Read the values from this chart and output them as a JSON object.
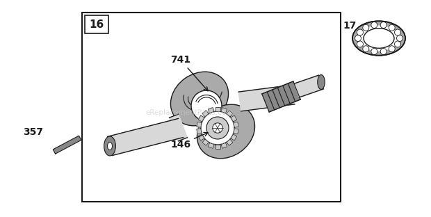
{
  "bg_color": "#ffffff",
  "fig_width": 6.2,
  "fig_height": 3.12,
  "dpi": 100,
  "watermark_text": "eReplacementParts.com",
  "watermark_color": "#c8c8c8",
  "watermark_alpha": 0.6,
  "line_color": "#1a1a1a",
  "shaft_fill": "#d8d8d8",
  "shaft_dark": "#888888",
  "crank_fill": "#aaaaaa",
  "gear_fill": "#cccccc"
}
